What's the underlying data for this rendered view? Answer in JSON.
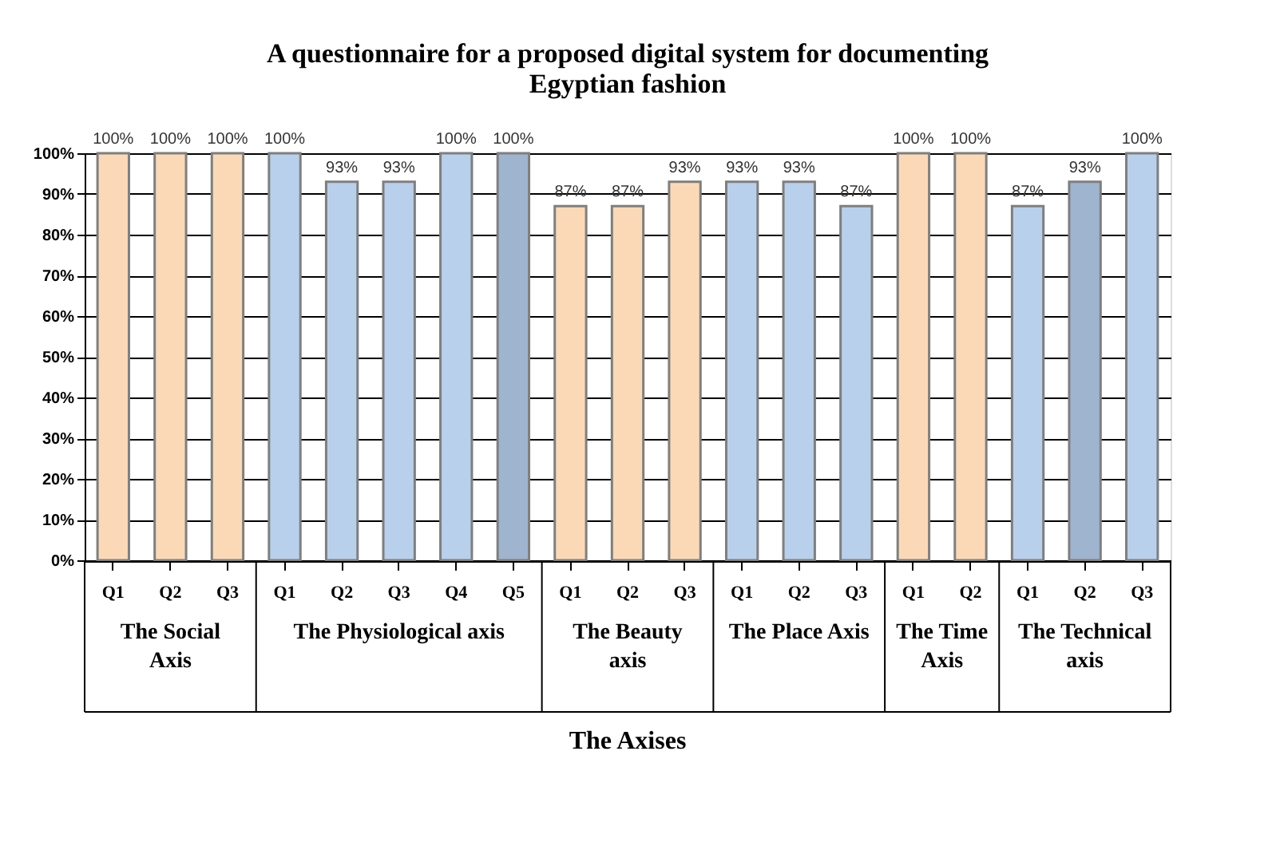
{
  "chart_data": {
    "type": "bar",
    "title": "A questionnaire for a proposed digital system for documenting Egyptian fashion",
    "annotations": [
      "The Axises"
    ],
    "categories": [
      "Q1",
      "Q2",
      "Q3",
      "Q1",
      "Q2",
      "Q3",
      "Q4",
      "Q5",
      "Q1",
      "Q2",
      "Q3",
      "Q1",
      "Q2",
      "Q3",
      "Q1",
      "Q2",
      "Q1",
      "Q2",
      "Q3"
    ],
    "series": [
      {
        "name": "The Social Axis",
        "color": "#fcd9b6",
        "values": [
          100,
          100,
          100,
          null,
          null,
          null,
          null,
          null,
          null,
          null,
          null,
          null,
          null,
          null,
          null,
          null,
          null,
          null,
          null
        ],
        "value_labels": [
          "100%",
          "100%",
          "100%",
          null,
          null,
          null,
          null,
          null,
          null,
          null,
          null,
          null,
          null,
          null,
          null,
          null,
          null,
          null,
          null
        ]
      },
      {
        "name": "The Physiological axis",
        "color": "#b8d0ec",
        "colors": [
          null,
          null,
          null,
          null,
          null,
          null,
          null,
          "#9fb4cf",
          null,
          null,
          null,
          null,
          null,
          null,
          null,
          null,
          null,
          null,
          null
        ],
        "values": [
          null,
          null,
          null,
          100,
          93,
          93,
          100,
          100,
          null,
          null,
          null,
          null,
          null,
          null,
          null,
          null,
          null,
          null,
          null
        ],
        "value_labels": [
          null,
          null,
          null,
          "100%",
          "93%",
          "93%",
          "100%",
          "100%",
          null,
          null,
          null,
          null,
          null,
          null,
          null,
          null,
          null,
          null,
          null
        ]
      },
      {
        "name": "The Beauty axis",
        "color": "#fcd9b6",
        "values": [
          null,
          null,
          null,
          null,
          null,
          null,
          null,
          null,
          87,
          87,
          93,
          null,
          null,
          null,
          null,
          null,
          null,
          null,
          null
        ],
        "value_labels": [
          null,
          null,
          null,
          null,
          null,
          null,
          null,
          null,
          "87%",
          "87%",
          "93%",
          null,
          null,
          null,
          null,
          null,
          null,
          null,
          null
        ]
      },
      {
        "name": "The Place Axis",
        "color": "#b8d0ec",
        "values": [
          null,
          null,
          null,
          null,
          null,
          null,
          null,
          null,
          null,
          null,
          null,
          93,
          93,
          87,
          null,
          null,
          null,
          null,
          null
        ],
        "value_labels": [
          null,
          null,
          null,
          null,
          null,
          null,
          null,
          null,
          null,
          null,
          null,
          "93%",
          "93%",
          "87%",
          null,
          null,
          null,
          null,
          null
        ]
      },
      {
        "name": "The Time Axis",
        "color": "#fcd9b6",
        "values": [
          null,
          null,
          null,
          null,
          null,
          null,
          null,
          null,
          null,
          null,
          null,
          null,
          null,
          null,
          100,
          100,
          null,
          null,
          null
        ],
        "value_labels": [
          null,
          null,
          null,
          null,
          null,
          null,
          null,
          null,
          null,
          null,
          null,
          null,
          null,
          null,
          "100%",
          "100%",
          null,
          null,
          null
        ]
      },
      {
        "name": "The Technical axis",
        "color": "#b8d0ec",
        "colors": [
          null,
          null,
          null,
          null,
          null,
          null,
          null,
          null,
          null,
          null,
          null,
          null,
          null,
          null,
          null,
          null,
          null,
          "#9fb4cf",
          null
        ],
        "values": [
          null,
          null,
          null,
          null,
          null,
          null,
          null,
          null,
          null,
          null,
          null,
          null,
          null,
          null,
          null,
          null,
          87,
          93,
          100
        ],
        "value_labels": [
          null,
          null,
          null,
          null,
          null,
          null,
          null,
          null,
          null,
          null,
          null,
          null,
          null,
          null,
          null,
          null,
          "87%",
          "93%",
          "100%"
        ]
      }
    ],
    "ylim": [
      0,
      100
    ],
    "yticks": [
      {
        "value": 0,
        "label": "0%"
      },
      {
        "value": 10,
        "label": "10%"
      },
      {
        "value": 20,
        "label": "20%"
      },
      {
        "value": 30,
        "label": "30%"
      },
      {
        "value": 40,
        "label": "40%"
      },
      {
        "value": 50,
        "label": "50%"
      },
      {
        "value": 60,
        "label": "60%"
      },
      {
        "value": 70,
        "label": "70%"
      },
      {
        "value": 80,
        "label": "80%"
      },
      {
        "value": 90,
        "label": "90%"
      },
      {
        "value": 100,
        "label": "100%"
      }
    ],
    "grid": "y"
  }
}
